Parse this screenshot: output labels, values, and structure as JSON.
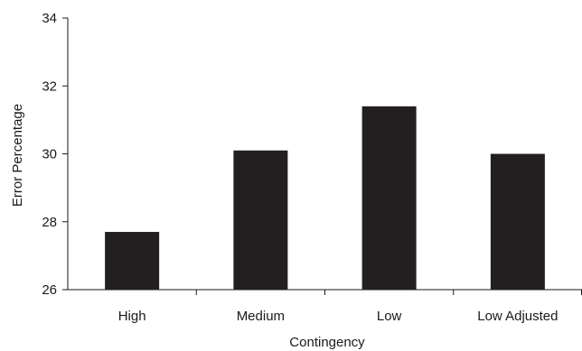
{
  "chart_data": {
    "type": "bar",
    "categories": [
      "High",
      "Medium",
      "Low",
      "Low Adjusted"
    ],
    "values": [
      27.7,
      30.1,
      31.4,
      30.0
    ],
    "xlabel": "Contingency",
    "ylabel": "Error Percentage",
    "ylim": [
      26,
      34
    ],
    "yticks": [
      26,
      28,
      30,
      32,
      34
    ],
    "grid": false,
    "bar_color": "#231f20"
  }
}
